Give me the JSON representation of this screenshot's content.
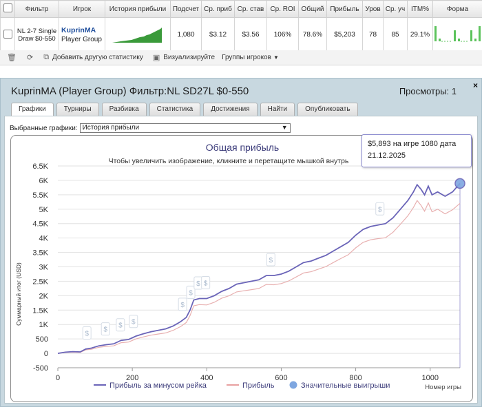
{
  "stats": {
    "columns": [
      "Фильтр",
      "Игрок",
      "История прибыли",
      "Подсчет",
      "Ср. приб",
      "Ср. став",
      "Ср. ROI",
      "Общий",
      "Прибыль",
      "Уров",
      "Ср. уч",
      "ITM%",
      "Форма"
    ],
    "row": {
      "filter": "NL 2-7 Single Draw $0-550",
      "player_name": "KuprinMA",
      "player_group": "Player Group",
      "count": "1,080",
      "avg_profit": "$3.12",
      "avg_stake": "$3.56",
      "avg_roi": "106%",
      "total": "78.6%",
      "profit": "$5,203",
      "level": "78",
      "avg_entrants": "85",
      "itm": "29.1%"
    }
  },
  "toolbar": {
    "add_stats": "Добавить другую статистику",
    "visualize": "Визуализируйте",
    "player_groups": "Группы игроков"
  },
  "panel": {
    "title": "KuprinMA (Player Group) Фильтр:NL SD27L $0-550",
    "views": "Просмотры: 1",
    "close": "×",
    "tabs": [
      "Графики",
      "Турниры",
      "Разбивка",
      "Статистика",
      "Достижения",
      "Найти",
      "Опубликовать"
    ],
    "select_label": "Выбранные графики:",
    "select_value": "История прибыли"
  },
  "tooltip": {
    "line1": "$5,893 на игре 1080 дата",
    "line2": "21.12.2025"
  },
  "chart_data": {
    "type": "line",
    "title": "Общая прибыль",
    "subtitle": "Чтобы увеличить изображение, кликните и перетащите мышкой внутрь",
    "xlabel": "Номер игры",
    "ylabel": "Суммарный итог (USD)",
    "xlim": [
      0,
      1080
    ],
    "ylim": [
      -500,
      6500
    ],
    "x_ticks": [
      0,
      200,
      400,
      600,
      800,
      1000
    ],
    "y_ticks": [
      -500,
      0,
      500,
      1000,
      1500,
      2000,
      2500,
      3000,
      3500,
      4000,
      4500,
      5000,
      5500,
      6000,
      6500
    ],
    "y_tick_labels": [
      "-500",
      "0",
      "500",
      "1K",
      "1.5K",
      "2K",
      "2.5K",
      "3K",
      "3.5K",
      "4K",
      "4.5K",
      "5K",
      "5.5K",
      "6K",
      "6.5K"
    ],
    "series": [
      {
        "name": "Прибыль за минусом рейка",
        "color": "#6a64b8",
        "x": [
          0,
          20,
          40,
          60,
          75,
          90,
          110,
          130,
          150,
          170,
          190,
          210,
          230,
          250,
          270,
          290,
          310,
          330,
          345,
          355,
          365,
          380,
          400,
          420,
          440,
          460,
          480,
          500,
          520,
          540,
          560,
          580,
          600,
          620,
          640,
          660,
          680,
          700,
          720,
          740,
          760,
          780,
          800,
          820,
          840,
          860,
          880,
          900,
          920,
          940,
          955,
          965,
          975,
          985,
          995,
          1005,
          1020,
          1040,
          1060,
          1080
        ],
        "values": [
          0,
          40,
          60,
          50,
          150,
          180,
          260,
          300,
          330,
          450,
          480,
          600,
          680,
          750,
          800,
          850,
          950,
          1100,
          1250,
          1500,
          1850,
          1900,
          1900,
          2000,
          2150,
          2250,
          2400,
          2450,
          2500,
          2550,
          2700,
          2700,
          2750,
          2850,
          3000,
          3150,
          3200,
          3300,
          3400,
          3550,
          3700,
          3850,
          4100,
          4300,
          4400,
          4450,
          4500,
          4700,
          5000,
          5300,
          5600,
          5850,
          5700,
          5500,
          5800,
          5500,
          5600,
          5450,
          5600,
          5893
        ]
      },
      {
        "name": "Прибыль",
        "color": "#e8b0b0",
        "x": [
          0,
          20,
          40,
          60,
          75,
          90,
          110,
          130,
          150,
          170,
          190,
          210,
          230,
          250,
          270,
          290,
          310,
          330,
          345,
          355,
          365,
          380,
          400,
          420,
          440,
          460,
          480,
          500,
          520,
          540,
          560,
          580,
          600,
          620,
          640,
          660,
          680,
          700,
          720,
          740,
          760,
          780,
          800,
          820,
          840,
          860,
          880,
          900,
          920,
          940,
          955,
          965,
          975,
          985,
          995,
          1005,
          1020,
          1040,
          1060,
          1080
        ],
        "values": [
          0,
          30,
          40,
          30,
          120,
          140,
          210,
          240,
          260,
          370,
          390,
          500,
          570,
          630,
          670,
          710,
          800,
          930,
          1070,
          1310,
          1650,
          1690,
          1680,
          1770,
          1910,
          2000,
          2130,
          2170,
          2210,
          2250,
          2390,
          2380,
          2420,
          2510,
          2650,
          2790,
          2830,
          2920,
          3010,
          3150,
          3290,
          3420,
          3660,
          3850,
          3940,
          3980,
          4010,
          4200,
          4480,
          4770,
          5060,
          5300,
          5140,
          4930,
          5220,
          4910,
          5000,
          4840,
          4980,
          5203
        ]
      }
    ],
    "significant_wins": {
      "name": "Значительные выигрыши",
      "color": "#7ea6e0",
      "x": [
        78,
        128,
        168,
        203,
        335,
        357,
        377,
        397,
        572,
        865,
        1080
      ]
    }
  }
}
